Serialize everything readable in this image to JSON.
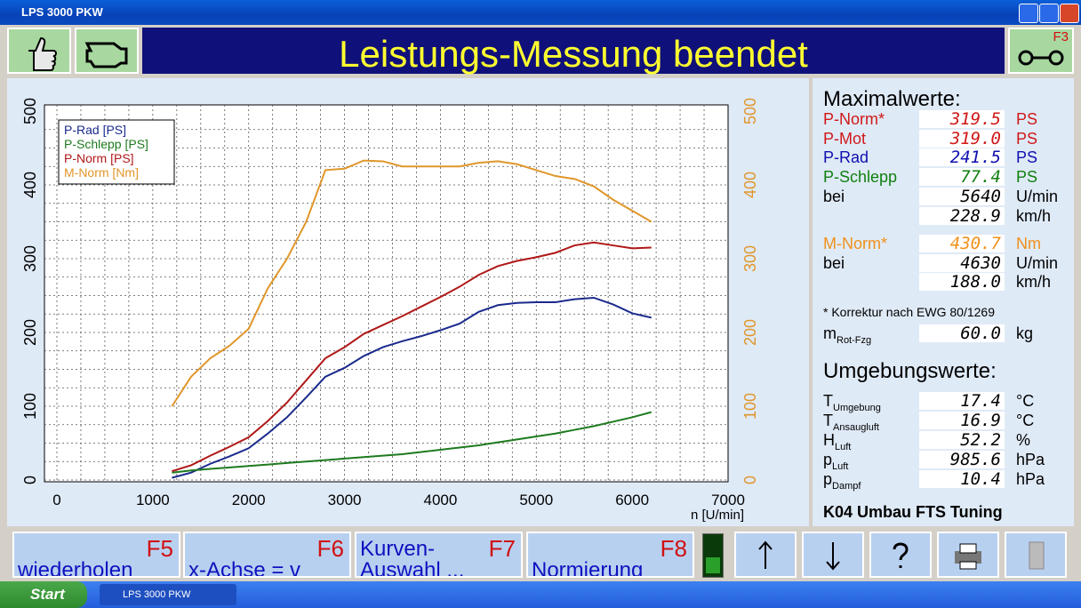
{
  "window": {
    "title": "LPS 3000 PKW"
  },
  "header": {
    "title": "Leistungs-Messung beendet",
    "f3": "F3"
  },
  "chart_data": {
    "type": "line",
    "x": [
      1200,
      1400,
      1600,
      1800,
      2000,
      2200,
      2400,
      2600,
      2800,
      3000,
      3200,
      3400,
      3600,
      3800,
      4000,
      4200,
      4400,
      4600,
      4800,
      5000,
      5200,
      5400,
      5600,
      5800,
      6000,
      6200
    ],
    "series": [
      {
        "name": "P-Rad [PS]",
        "color": "#1a2a8c",
        "values": [
          3,
          10,
          22,
          32,
          43,
          63,
          85,
          112,
          140,
          152,
          168,
          180,
          188,
          195,
          203,
          212,
          228,
          237,
          240,
          241,
          241,
          245,
          247,
          238,
          226,
          220
        ]
      },
      {
        "name": "P-Schlepp [PS]",
        "color": "#1e7a1e",
        "values": [
          10,
          13,
          15,
          17,
          19,
          21,
          23,
          25,
          27,
          29,
          31,
          33,
          35,
          38,
          41,
          44,
          47,
          51,
          55,
          59,
          63,
          68,
          73,
          79,
          85,
          92
        ]
      },
      {
        "name": "P-Norm [PS]",
        "color": "#b01818",
        "values": [
          12,
          20,
          33,
          45,
          58,
          80,
          105,
          135,
          165,
          180,
          198,
          210,
          222,
          235,
          248,
          262,
          278,
          290,
          297,
          302,
          308,
          318,
          322,
          318,
          314,
          315
        ]
      },
      {
        "name": "M-Norm [Nm]",
        "color": "#e0962a",
        "axis": "y2",
        "values": [
          100,
          140,
          165,
          182,
          205,
          260,
          300,
          350,
          420,
          422,
          433,
          432,
          425,
          425,
          425,
          425,
          430,
          432,
          428,
          420,
          412,
          408,
          398,
          380,
          365,
          350
        ]
      }
    ],
    "xlim": [
      0,
      7000
    ],
    "xticks": [
      0,
      1000,
      2000,
      3000,
      4000,
      5000,
      6000,
      7000
    ],
    "xlabel": "n [U/min]",
    "ylim": [
      0,
      500
    ],
    "yticks": [
      0,
      100,
      200,
      300,
      400,
      500
    ],
    "y2lim": [
      0,
      500
    ],
    "y2ticks": [
      0,
      100,
      200,
      300,
      400,
      500
    ],
    "y2color": "#e0962a",
    "grid": true,
    "legend": "upper left"
  },
  "max_values": {
    "title": "Maximalwerte:",
    "rows": [
      {
        "label": "P-Norm*",
        "value": "319.5",
        "unit": "PS",
        "color": "#d01818"
      },
      {
        "label": "P-Mot",
        "value": "319.0",
        "unit": "PS",
        "color": "#d01818"
      },
      {
        "label": "P-Rad",
        "value": "241.5",
        "unit": "PS",
        "color": "#1010b0"
      },
      {
        "label": "P-Schlepp",
        "value": "77.4",
        "unit": "PS",
        "color": "#108010"
      },
      {
        "label": "bei",
        "value": "5640",
        "unit": "U/min"
      },
      {
        "value": "228.9",
        "unit": "km/h"
      },
      {
        "label": "M-Norm*",
        "value": "430.7",
        "unit": "Nm",
        "color": "#f0901a"
      },
      {
        "label": "bei",
        "value": "4630",
        "unit": "U/min"
      },
      {
        "value": "188.0",
        "unit": "km/h"
      }
    ],
    "note": "* Korrektur nach EWG 80/1269",
    "mass": {
      "label": "m",
      "sub": "Rot-Fzg",
      "value": "60.0",
      "unit": "kg"
    }
  },
  "environment": {
    "title": "Umgebungswerte:",
    "rows": [
      {
        "label": "T",
        "sub": "Umgebung",
        "value": "17.4",
        "unit": "°C"
      },
      {
        "label": "T",
        "sub": "Ansaugluft",
        "value": "16.9",
        "unit": "°C"
      },
      {
        "label": "H",
        "sub": "Luft",
        "value": "52.2",
        "unit": "%"
      },
      {
        "label": "p",
        "sub": "Luft",
        "value": "985.6",
        "unit": "hPa"
      },
      {
        "label": "p",
        "sub": "Dampf",
        "value": "10.4",
        "unit": "hPa"
      }
    ]
  },
  "vehicle": "K04 Umbau FTS Tuning",
  "function_keys": [
    {
      "key": "F5",
      "label": "wiederholen"
    },
    {
      "key": "F6",
      "label": "x-Achse = v"
    },
    {
      "key": "F7",
      "label": "Kurven-",
      "label2": "Auswahl ..."
    },
    {
      "key": "F8",
      "label": "Normierung"
    }
  ],
  "taskbar": {
    "start": "Start",
    "task": "LPS 3000 PKW"
  }
}
